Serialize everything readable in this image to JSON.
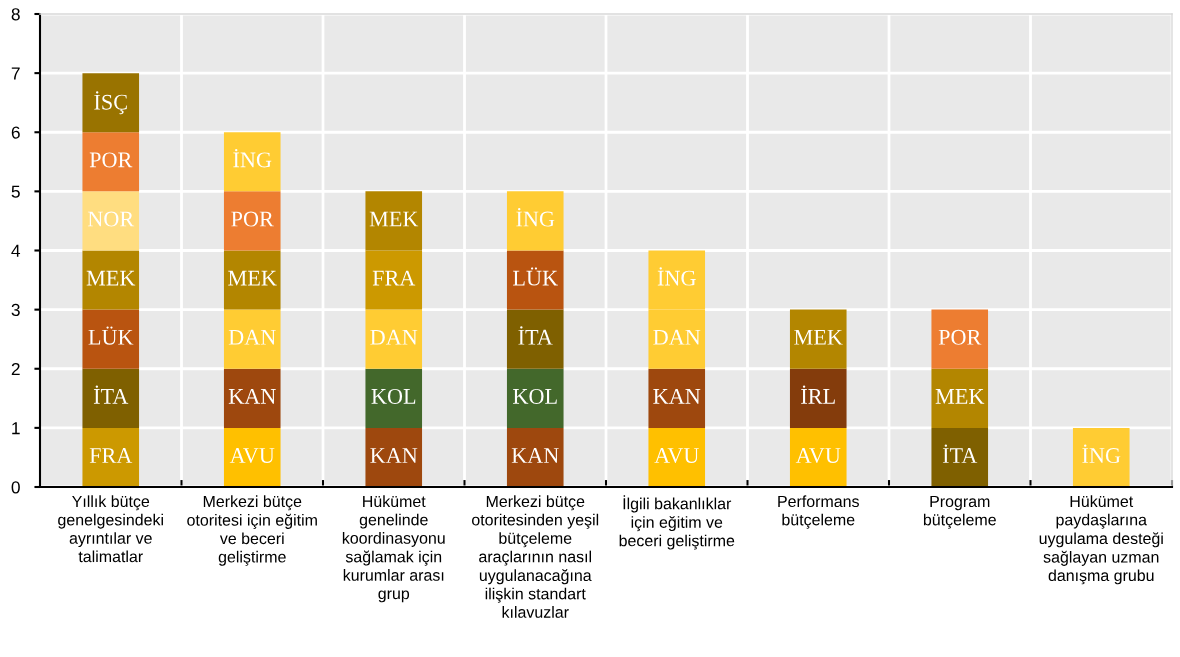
{
  "chart_data": {
    "type": "bar",
    "stacked": true,
    "categories": [
      "Yıllık bütçe\ngenelgesindeki\nayrıntılar ve\ntalimatlar",
      "Merkezi bütçe\notoritesi için eğitim\nve beceri\ngeliştirme",
      "Hükümet\ngenelinde\nkoordinasyonu\nsağlamak için\nkurumlar arası\ngrup",
      "Merkezi bütçe\notoritesinden yeşil\nbütçeleme\naraçlarının nasıl\nuygulanacağına\nilişkin standart\nkılavuzlar",
      "İlgili bakanlıklar\niçin eğitim ve\nbeceri geliştirme",
      "Performans\nbütçeleme",
      "Program\nbütçeleme",
      "Hükümet\npaydaşlarına\nuygulama desteği\nsağlayan uzman\ndanışma grubu"
    ],
    "series": [
      {
        "values": [
          1,
          1,
          1,
          1,
          1,
          1,
          1,
          1
        ],
        "colors": [
          "#cc9900",
          "#ffc000",
          "#9e480e",
          "#9e480e",
          "#ffc000",
          "#ffc000",
          "#7f6000",
          "#ffcc33"
        ],
        "value_labels": [
          "FRA",
          "AVU",
          "KAN",
          "KAN",
          "AVU",
          "AVU",
          "İTA",
          "İNG"
        ]
      },
      {
        "values": [
          1,
          1,
          1,
          1,
          1,
          1,
          1,
          null
        ],
        "colors": [
          "#7f6000",
          "#9e480e",
          "#43682b",
          "#43682b",
          "#9e480e",
          "#843c0c",
          "#b38600",
          null
        ],
        "value_labels": [
          "İTA",
          "KAN",
          "KOL",
          "KOL",
          "KAN",
          "İRL",
          "MEK",
          null
        ]
      },
      {
        "values": [
          1,
          1,
          1,
          1,
          1,
          1,
          1,
          null
        ],
        "colors": [
          "#b95410",
          "#ffcc33",
          "#ffcc33",
          "#7f6000",
          "#ffcc33",
          "#b38600",
          "#ed7d31",
          null
        ],
        "value_labels": [
          "LÜK",
          "DAN",
          "DAN",
          "İTA",
          "DAN",
          "MEK",
          "POR",
          null
        ]
      },
      {
        "values": [
          1,
          1,
          1,
          1,
          1,
          null,
          null,
          null
        ],
        "colors": [
          "#b38600",
          "#b38600",
          "#cc9900",
          "#b95410",
          "#ffcc33",
          null,
          null,
          null
        ],
        "value_labels": [
          "MEK",
          "MEK",
          "FRA",
          "LÜK",
          "İNG",
          null,
          null,
          null
        ]
      },
      {
        "values": [
          1,
          1,
          1,
          1,
          null,
          null,
          null,
          null
        ],
        "colors": [
          "#ffdd80",
          "#ed7d31",
          "#b38600",
          "#ffcc33",
          null,
          null,
          null,
          null
        ],
        "value_labels": [
          "NOR",
          "POR",
          "MEK",
          "İNG",
          null,
          null,
          null,
          null
        ]
      },
      {
        "values": [
          1,
          1,
          null,
          null,
          null,
          null,
          null,
          null
        ],
        "colors": [
          "#ed7d31",
          "#ffcc33",
          null,
          null,
          null,
          null,
          null,
          null
        ],
        "value_labels": [
          "POR",
          "İNG",
          null,
          null,
          null,
          null,
          null,
          null
        ]
      },
      {
        "values": [
          1,
          null,
          null,
          null,
          null,
          null,
          null,
          null
        ],
        "colors": [
          "#997300",
          null,
          null,
          null,
          null,
          null,
          null,
          null
        ],
        "value_labels": [
          "İSÇ",
          null,
          null,
          null,
          null,
          null,
          null,
          null
        ]
      }
    ],
    "ylim": [
      0,
      8
    ],
    "yticks": [
      0,
      1,
      2,
      3,
      4,
      5,
      6,
      7,
      8
    ],
    "grid": true
  }
}
